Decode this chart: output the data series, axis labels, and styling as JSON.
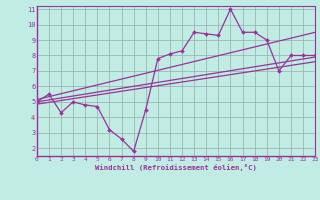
{
  "zigzag_x": [
    0,
    1,
    2,
    3,
    4,
    5,
    6,
    7,
    8,
    9,
    10,
    11,
    12,
    13,
    14,
    15,
    16,
    17,
    18,
    19,
    20,
    21,
    22,
    23
  ],
  "zigzag_y": [
    5.0,
    5.5,
    4.3,
    5.0,
    4.8,
    4.7,
    3.2,
    2.6,
    1.8,
    4.5,
    7.8,
    8.1,
    8.3,
    9.5,
    9.4,
    9.3,
    11.0,
    9.5,
    9.5,
    9.0,
    7.0,
    8.0,
    8.0,
    8.0
  ],
  "line1_x": [
    0,
    23
  ],
  "line1_y": [
    5.0,
    7.9
  ],
  "line2_x": [
    0,
    23
  ],
  "line2_y": [
    4.85,
    7.6
  ],
  "line3_x": [
    0,
    23
  ],
  "line3_y": [
    5.15,
    9.5
  ],
  "color": "#993399",
  "bg_color": "#c0ece4",
  "grid_color": "#9db8b2",
  "xlabel": "Windchill (Refroidissement éolien,°C)",
  "xlim": [
    0,
    23
  ],
  "ylim": [
    1.5,
    11.2
  ],
  "yticks": [
    2,
    3,
    4,
    5,
    6,
    7,
    8,
    9,
    10,
    11
  ],
  "xticks": [
    0,
    1,
    2,
    3,
    4,
    5,
    6,
    7,
    8,
    9,
    10,
    11,
    12,
    13,
    14,
    15,
    16,
    17,
    18,
    19,
    20,
    21,
    22,
    23
  ]
}
